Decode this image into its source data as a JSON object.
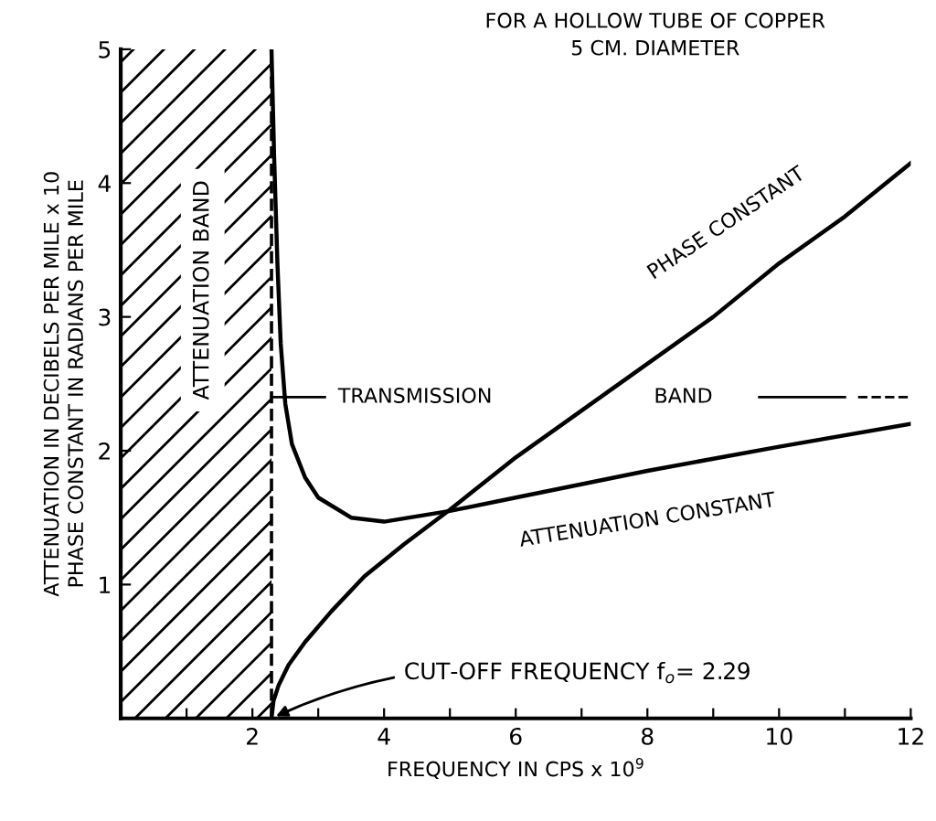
{
  "chart_data": {
    "type": "line",
    "title": "FOR A HOLLOW TUBE OF COPPER\n5 CM. DIAMETER",
    "xlabel": "FREQUENCY IN CPS x 10$^{9}$",
    "ylabel": "ATTENUATION IN DECIBELS PER MILE x 10\nPHASE CONSTANT IN RADIANS PER MILE",
    "series": [
      {
        "name": "PHASE CONSTANT",
        "color": "#000000",
        "x": [
          2.29,
          2.32,
          2.4,
          2.55,
          2.8,
          3.2,
          3.7,
          4.3,
          5.0,
          6.0,
          7.0,
          8.0,
          9.0,
          10.0,
          11.0,
          12.0
        ],
        "values": [
          0.0,
          0.13,
          0.25,
          0.4,
          0.57,
          0.8,
          1.06,
          1.3,
          1.56,
          1.95,
          2.3,
          2.65,
          3.0,
          3.4,
          3.75,
          4.15
        ]
      },
      {
        "name": "ATTENUATION CONSTANT",
        "color": "#000000",
        "x": [
          2.29,
          2.33,
          2.38,
          2.43,
          2.5,
          2.6,
          2.8,
          3.0,
          3.5,
          4.0,
          5.0,
          6.0,
          8.0,
          10.0,
          12.0
        ],
        "values": [
          5.0,
          4.2,
          3.4,
          2.8,
          2.35,
          2.05,
          1.8,
          1.65,
          1.5,
          1.47,
          1.55,
          1.65,
          1.85,
          2.03,
          2.2
        ]
      }
    ],
    "xlim": [
      0,
      12
    ],
    "ylim": [
      0,
      5
    ],
    "xticks": [
      {
        "value": 1,
        "label": null
      },
      2,
      {
        "value": 3,
        "label": null
      },
      4,
      {
        "value": 5,
        "label": null
      },
      6,
      {
        "value": 7,
        "label": null
      },
      8,
      {
        "value": 9,
        "label": null
      },
      10,
      {
        "value": 11,
        "label": null
      },
      12
    ],
    "yticks": [
      1,
      2,
      3,
      4,
      5
    ],
    "bands": [
      {
        "axis": "x",
        "from": 0,
        "to": 2.29,
        "label": "ATTENUATION BAND",
        "color": "#000000"
      }
    ],
    "ref_lines": [
      {
        "axis": "x",
        "value": 2.29,
        "line_style": "dashed",
        "color": "#000000"
      }
    ],
    "annotations": [
      {
        "text": "CUT-OFF FREQUENCY f$_{o}$= 2.29",
        "x": 2.29,
        "y": 0
      },
      "TRANSMISSION",
      "BAND"
    ],
    "grid": false,
    "legend": false,
    "marker": "none",
    "line_style": "solid"
  }
}
